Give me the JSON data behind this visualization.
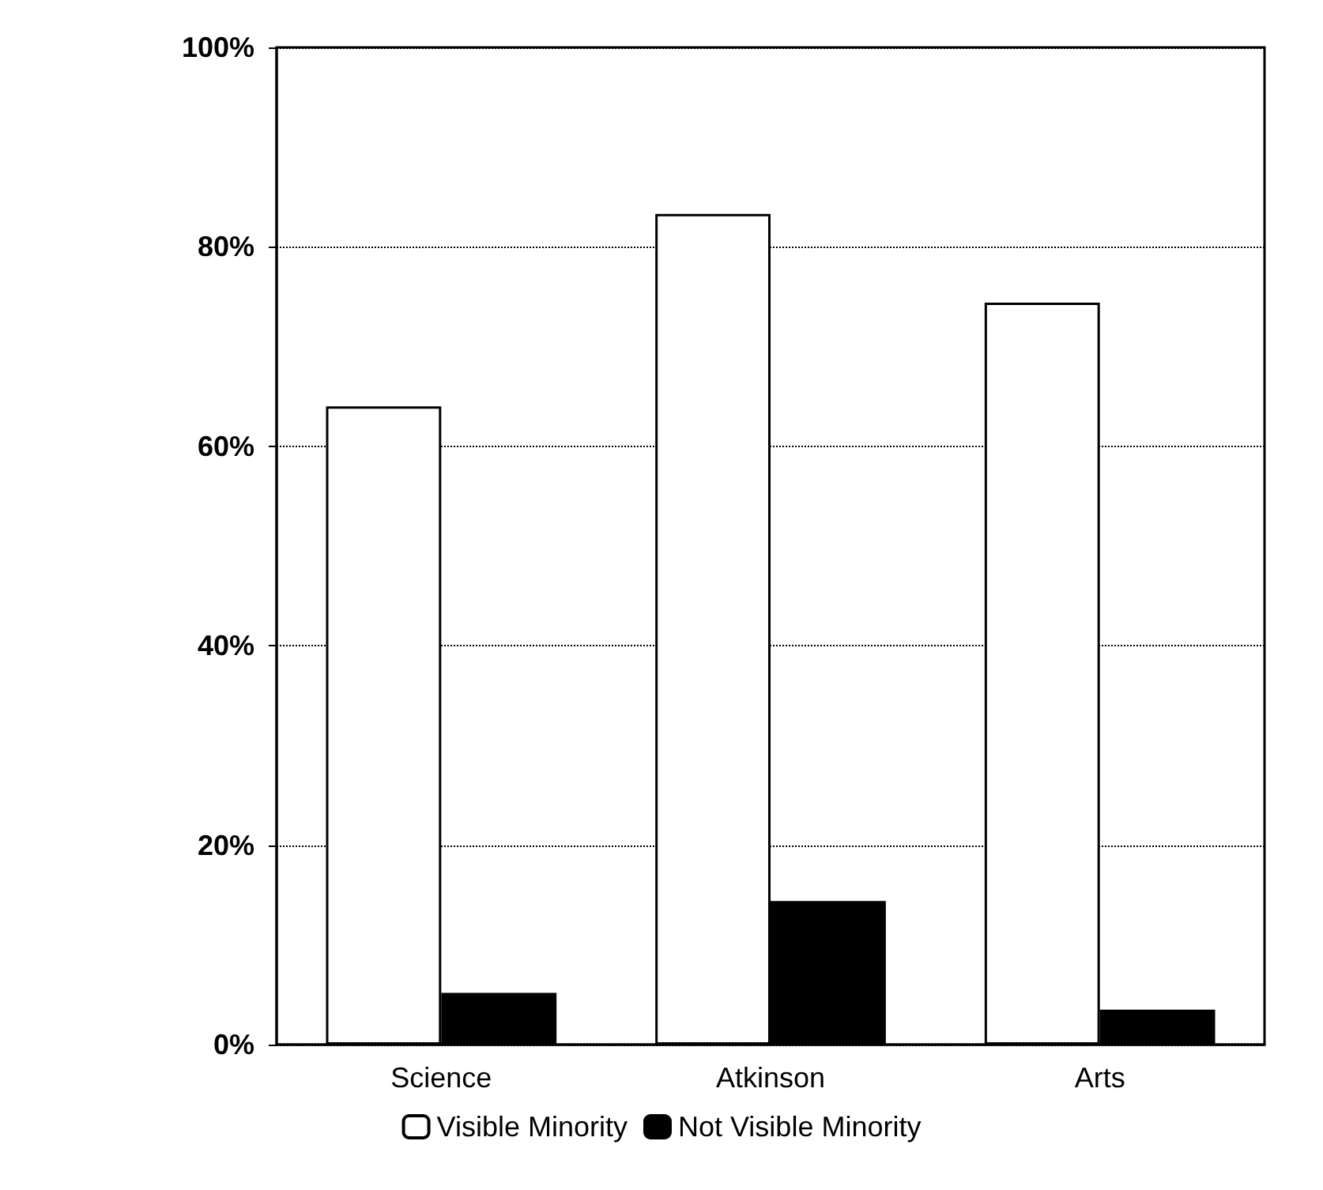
{
  "chart_data": {
    "type": "bar",
    "categories": [
      "Science",
      "Atkinson",
      "Arts"
    ],
    "series": [
      {
        "name": "Visible Minority",
        "color": "#ffffff",
        "values": [
          64,
          83.3,
          74.4
        ]
      },
      {
        "name": "Not Visible Minority",
        "color": "#000000",
        "values": [
          5.2,
          14.4,
          3.5
        ]
      }
    ],
    "ylim": [
      0,
      100
    ],
    "yticks": [
      {
        "value": 0,
        "label": "0%"
      },
      {
        "value": 20,
        "label": "20%"
      },
      {
        "value": 40,
        "label": "40%"
      },
      {
        "value": 60,
        "label": "60%"
      },
      {
        "value": 80,
        "label": "80%"
      },
      {
        "value": 100,
        "label": "100%"
      }
    ],
    "grid": "y",
    "legend": "bottom"
  }
}
